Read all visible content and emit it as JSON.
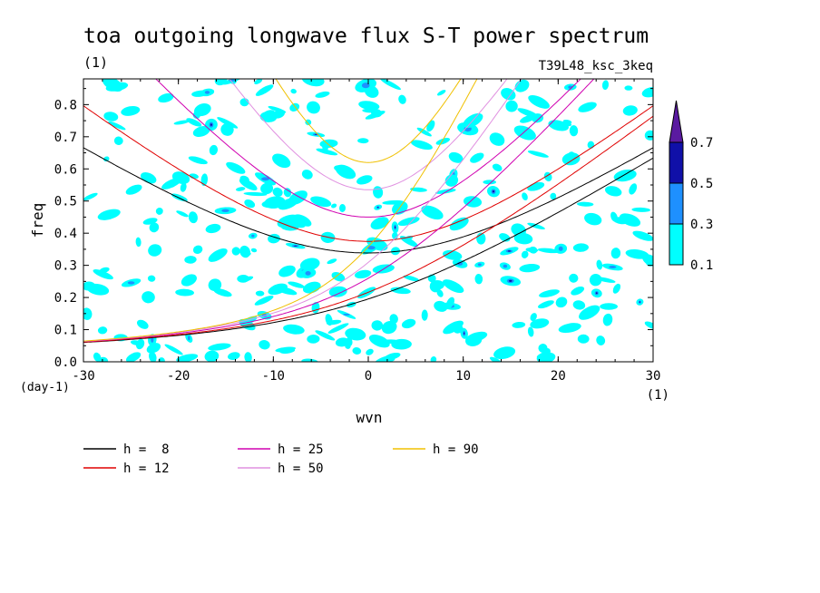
{
  "chart_data": {
    "type": "contour",
    "title": "toa outgoing longwave flux S-T power spectrum",
    "subtitle_left": "(1)",
    "subtitle_right": "T39L48_ksc_3keq",
    "xlabel": "wvn",
    "ylabel": "freq",
    "x_unit": "(1)",
    "y_unit": "(day-1)",
    "xlim": [
      -30,
      30
    ],
    "ylim": [
      0,
      0.88
    ],
    "x_ticks": [
      -30,
      -20,
      -10,
      0,
      10,
      20,
      30
    ],
    "x_tick_labels": [
      "-30",
      "-20",
      "-10",
      "0",
      "10",
      "20",
      "30"
    ],
    "y_ticks": [
      0,
      0.1,
      0.2,
      0.3,
      0.4,
      0.5,
      0.6,
      0.7,
      0.8
    ],
    "y_tick_labels": [
      "0.0",
      "0.1",
      "0.2",
      "0.3",
      "0.4",
      "0.5",
      "0.6",
      "0.7",
      "0.8"
    ],
    "colorbar": {
      "levels": [
        0.1,
        0.3,
        0.5,
        0.7
      ],
      "labels": [
        "0.1",
        "0.3",
        "0.5",
        "0.7"
      ],
      "colors": [
        "#00ffff",
        "#1e90ff",
        "#1010a8",
        "#5a1aa0"
      ],
      "extend": "max"
    },
    "series": [
      {
        "name": "h =  8",
        "h": 8,
        "color": "#000000"
      },
      {
        "name": "h = 12",
        "h": 12,
        "color": "#e00000"
      },
      {
        "name": "h = 25",
        "h": 25,
        "color": "#d000b0"
      },
      {
        "name": "h = 50",
        "h": 50,
        "color": "#e090e0"
      },
      {
        "name": "h = 90",
        "h": 90,
        "color": "#f0c000"
      }
    ],
    "legend_placement": "below"
  }
}
